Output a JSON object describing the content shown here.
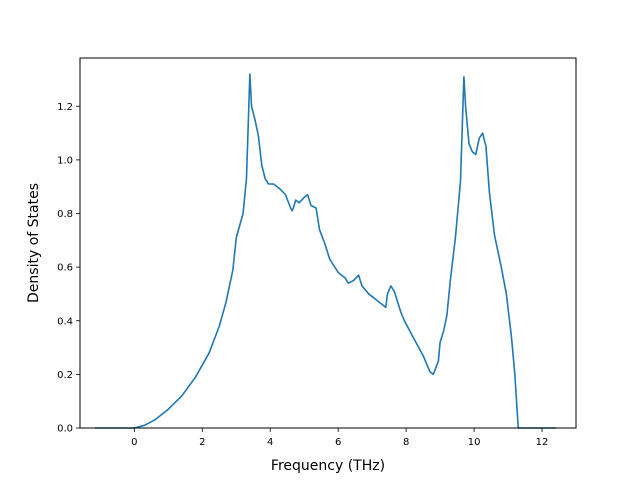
{
  "chart_data": {
    "type": "line",
    "title": "",
    "xlabel": "Frequency (THz)",
    "ylabel": "Density of States",
    "xlim": [
      -1.6,
      13.0
    ],
    "ylim": [
      0.0,
      1.38
    ],
    "xticks": [
      0,
      2,
      4,
      6,
      8,
      10,
      12
    ],
    "yticks": [
      0.0,
      0.2,
      0.4,
      0.6,
      0.8,
      1.0,
      1.2
    ],
    "xtick_labels": [
      "0",
      "2",
      "4",
      "6",
      "8",
      "10",
      "12"
    ],
    "ytick_labels": [
      "0.0",
      "0.2",
      "0.4",
      "0.6",
      "0.8",
      "1.0",
      "1.2"
    ],
    "grid": false,
    "legend": "none",
    "line_color": "#1f77b4",
    "series": [
      {
        "x": [
          -1.15,
          -0.5,
          0.0,
          0.3,
          0.6,
          1.0,
          1.4,
          1.8,
          2.2,
          2.5,
          2.7,
          2.9,
          3.0,
          3.2,
          3.3,
          3.4,
          3.45,
          3.55,
          3.65,
          3.75,
          3.85,
          3.95,
          4.1,
          4.3,
          4.45,
          4.6,
          4.65,
          4.75,
          4.85,
          5.0,
          5.1,
          5.2,
          5.35,
          5.45,
          5.6,
          5.75,
          5.9,
          6.0,
          6.2,
          6.3,
          6.45,
          6.6,
          6.7,
          6.9,
          7.1,
          7.3,
          7.4,
          7.45,
          7.55,
          7.65,
          7.75,
          7.85,
          7.95,
          8.2,
          8.5,
          8.7,
          8.8,
          8.95,
          9.0,
          9.1,
          9.2,
          9.3,
          9.45,
          9.6,
          9.7,
          9.75,
          9.85,
          9.95,
          10.05,
          10.15,
          10.25,
          10.35,
          10.45,
          10.6,
          10.8,
          10.95,
          11.1,
          11.2,
          11.3,
          12.4
        ],
        "values": [
          0.0,
          0.0,
          0.0,
          0.01,
          0.03,
          0.07,
          0.12,
          0.19,
          0.28,
          0.38,
          0.47,
          0.59,
          0.71,
          0.8,
          0.93,
          1.32,
          1.2,
          1.15,
          1.09,
          0.98,
          0.93,
          0.91,
          0.91,
          0.89,
          0.87,
          0.82,
          0.81,
          0.85,
          0.84,
          0.86,
          0.87,
          0.83,
          0.82,
          0.74,
          0.69,
          0.63,
          0.6,
          0.58,
          0.56,
          0.54,
          0.55,
          0.57,
          0.53,
          0.5,
          0.48,
          0.46,
          0.45,
          0.5,
          0.53,
          0.51,
          0.47,
          0.43,
          0.4,
          0.34,
          0.27,
          0.21,
          0.2,
          0.25,
          0.32,
          0.36,
          0.42,
          0.55,
          0.71,
          0.92,
          1.31,
          1.2,
          1.06,
          1.03,
          1.02,
          1.08,
          1.1,
          1.05,
          0.88,
          0.72,
          0.6,
          0.5,
          0.34,
          0.2,
          0.0,
          0.0
        ]
      }
    ]
  }
}
